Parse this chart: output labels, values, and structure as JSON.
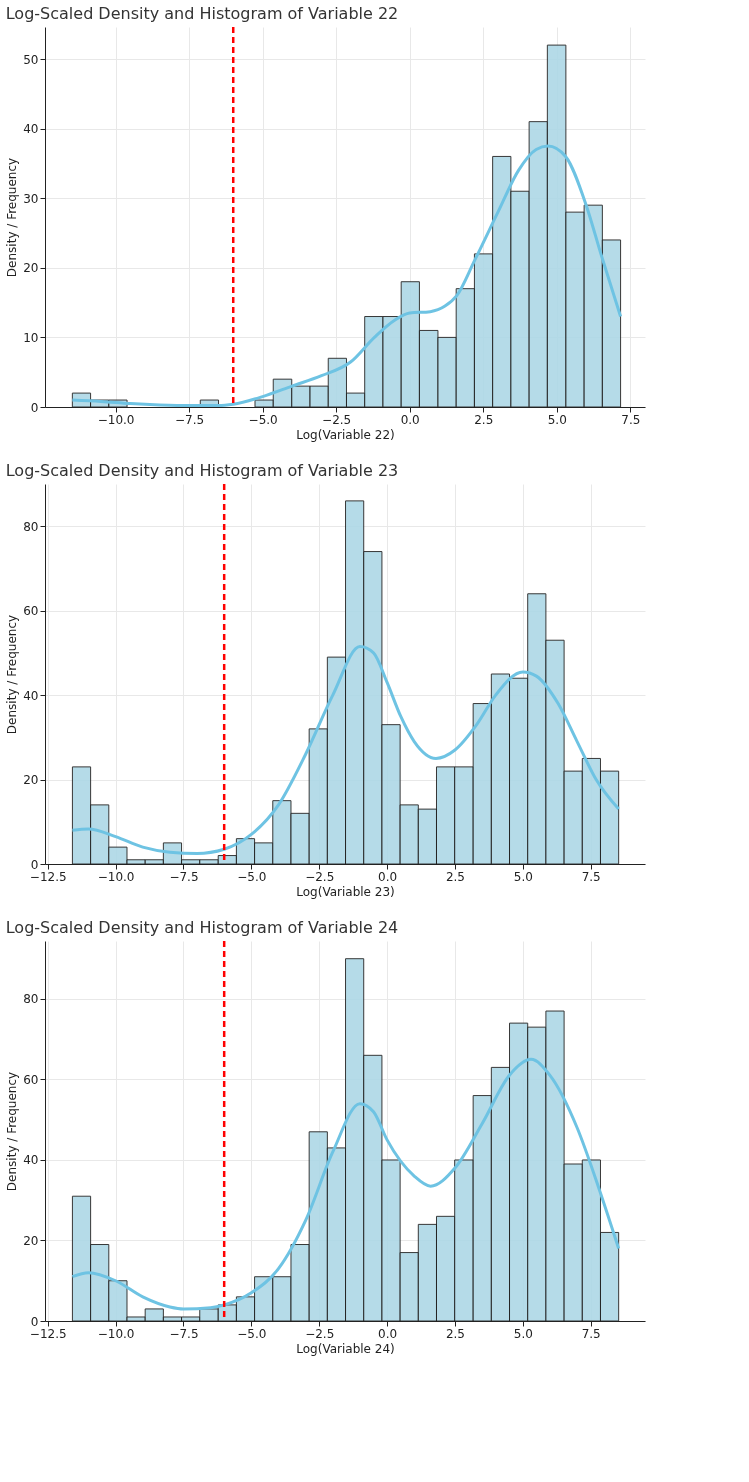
{
  "chart_data": [
    {
      "type": "histogram",
      "title": "Log-Scaled Density and Histogram of Variable 22",
      "xlabel": "Log(Variable 22)",
      "ylabel": "Density / Frequency",
      "bins": [
        -11.47,
        -10.85,
        -10.23,
        -9.61,
        -8.98,
        -8.36,
        -7.74,
        -7.12,
        -6.5,
        -5.88,
        -5.26,
        -4.64,
        -4.01,
        -3.39,
        -2.77,
        -2.15,
        -1.53,
        -0.91,
        -0.29,
        0.33,
        0.96,
        1.58,
        2.2,
        2.82,
        3.44,
        4.06,
        4.68,
        5.31,
        5.93,
        6.55,
        7.17
      ],
      "values": [
        2,
        1,
        1,
        0,
        0,
        0,
        0,
        1,
        0,
        0,
        1,
        4,
        3,
        3,
        7,
        2,
        13,
        13,
        18,
        11,
        10,
        17,
        22,
        36,
        31,
        41,
        52,
        28,
        29,
        24
      ],
      "color": "#add8e6",
      "series": [
        {
          "type": "line",
          "color": "#6ec3e3",
          "x": [
            -11.47,
            -10.5,
            -9.5,
            -8.5,
            -7.5,
            -6.5,
            -6,
            -5,
            -4,
            -3,
            -2,
            -1.2,
            -0.5,
            0,
            0.7,
            1.2,
            1.6,
            2.2,
            3,
            3.7,
            4.3,
            4.7,
            5.3,
            6,
            6.5,
            7.17
          ],
          "values": [
            1,
            0.8,
            0.5,
            0.3,
            0.2,
            0.2,
            0.4,
            1.5,
            3,
            4.5,
            6.5,
            10,
            12.5,
            13.5,
            13.7,
            14.5,
            16,
            21,
            28,
            34,
            37,
            37.5,
            36,
            29,
            22,
            13
          ]
        }
      ],
      "xlim": [
        -12.4,
        8.0
      ],
      "xticks": [
        {
          "value": -10,
          "label": "−10.0"
        },
        {
          "value": -7.5,
          "label": "−7.5"
        },
        {
          "value": -5,
          "label": "−5.0"
        },
        {
          "value": -2.5,
          "label": "−2.5"
        },
        {
          "value": 0,
          "label": "0.0"
        },
        {
          "value": 2.5,
          "label": "2.5"
        },
        {
          "value": 5,
          "label": "5.0"
        },
        {
          "value": 7.5,
          "label": "7.5"
        }
      ],
      "ylim": [
        0,
        54.6
      ],
      "yticks": [
        0,
        10,
        20,
        30,
        40,
        50
      ],
      "ref_lines": [
        {
          "axis": "x",
          "value": -6,
          "color": "#ff0000",
          "line_style": "dashed"
        }
      ],
      "grid": true
    },
    {
      "type": "histogram",
      "title": "Log-Scaled Density and Histogram of Variable 23",
      "xlabel": "Log(Variable 23)",
      "ylabel": "Density / Frequency",
      "bins": [
        -11.59,
        -10.92,
        -10.25,
        -9.58,
        -8.91,
        -8.24,
        -7.57,
        -6.9,
        -6.22,
        -5.55,
        -4.88,
        -4.21,
        -3.54,
        -2.87,
        -2.2,
        -1.53,
        -0.86,
        -0.19,
        0.48,
        1.15,
        1.82,
        2.49,
        3.17,
        3.84,
        4.51,
        5.18,
        5.85,
        6.52,
        7.19,
        7.86,
        8.53
      ],
      "values": [
        23,
        14,
        4,
        1,
        1,
        5,
        1,
        1,
        2,
        6,
        5,
        15,
        12,
        32,
        49,
        86,
        74,
        33,
        14,
        13,
        23,
        23,
        38,
        45,
        44,
        64,
        53,
        22,
        25,
        22
      ],
      "color": "#add8e6",
      "series": [
        {
          "type": "line",
          "color": "#6ec3e3",
          "x": [
            -11.59,
            -11,
            -10,
            -9,
            -8,
            -7,
            -6,
            -5,
            -4,
            -3,
            -2,
            -1,
            -0.5,
            0,
            0.5,
            1,
            1.8,
            2.5,
            3.3,
            4,
            5,
            5.5,
            6.3,
            7,
            7.7,
            8.53
          ],
          "values": [
            8,
            8.3,
            6.5,
            4,
            2.8,
            2.5,
            3.5,
            7,
            14,
            26,
            40,
            51.5,
            50,
            43,
            35,
            29,
            25,
            27,
            33,
            40,
            45.5,
            44.5,
            38,
            29,
            20,
            13
          ]
        }
      ],
      "xlim": [
        -12.6,
        9.5
      ],
      "xticks": [
        {
          "value": -12.5,
          "label": "−12.5"
        },
        {
          "value": -10,
          "label": "−10.0"
        },
        {
          "value": -7.5,
          "label": "−7.5"
        },
        {
          "value": -5,
          "label": "−5.0"
        },
        {
          "value": -2.5,
          "label": "−2.5"
        },
        {
          "value": 0,
          "label": "0.0"
        },
        {
          "value": 2.5,
          "label": "2.5"
        },
        {
          "value": 5,
          "label": "5.0"
        },
        {
          "value": 7.5,
          "label": "7.5"
        }
      ],
      "ylim": [
        0,
        90
      ],
      "yticks": [
        0,
        20,
        40,
        60,
        80
      ],
      "ref_lines": [
        {
          "axis": "x",
          "value": -6,
          "color": "#ff0000",
          "line_style": "dashed"
        }
      ],
      "grid": true
    },
    {
      "type": "histogram",
      "title": "Log-Scaled Density and Histogram of Variable 24",
      "xlabel": "Log(Variable 24)",
      "ylabel": "Density / Frequency",
      "bins": [
        -11.59,
        -10.92,
        -10.25,
        -9.58,
        -8.91,
        -8.24,
        -7.57,
        -6.9,
        -6.22,
        -5.55,
        -4.88,
        -4.21,
        -3.54,
        -2.87,
        -2.2,
        -1.53,
        -0.86,
        -0.19,
        0.48,
        1.15,
        1.82,
        2.49,
        3.17,
        3.84,
        4.51,
        5.18,
        5.85,
        6.52,
        7.19,
        7.86,
        8.53
      ],
      "values": [
        31,
        19,
        10,
        1,
        3,
        1,
        1,
        3,
        4,
        6,
        11,
        11,
        19,
        47,
        43,
        90,
        66,
        40,
        17,
        24,
        26,
        40,
        56,
        63,
        74,
        73,
        77,
        39,
        40,
        22
      ],
      "color": "#add8e6",
      "series": [
        {
          "type": "line",
          "color": "#6ec3e3",
          "x": [
            -11.59,
            -11,
            -10,
            -9,
            -8,
            -7.5,
            -6.5,
            -6,
            -5,
            -4,
            -3,
            -2,
            -1,
            -0.5,
            0,
            1,
            1.6,
            2.5,
            3.5,
            4.5,
            5.3,
            6,
            7,
            7.8,
            8.53
          ],
          "values": [
            11,
            12,
            10,
            6,
            3.5,
            3,
            3.3,
            4,
            7,
            13,
            25,
            42,
            54,
            52,
            45,
            36,
            33.5,
            38,
            49,
            61,
            65,
            61,
            48,
            33,
            18
          ]
        }
      ],
      "xlim": [
        -12.6,
        9.5
      ],
      "xticks": [
        {
          "value": -12.5,
          "label": "−12.5"
        },
        {
          "value": -10,
          "label": "−10.0"
        },
        {
          "value": -7.5,
          "label": "−7.5"
        },
        {
          "value": -5,
          "label": "−5.0"
        },
        {
          "value": -2.5,
          "label": "−2.5"
        },
        {
          "value": 0,
          "label": "0.0"
        },
        {
          "value": 2.5,
          "label": "2.5"
        },
        {
          "value": 5,
          "label": "5.0"
        },
        {
          "value": 7.5,
          "label": "7.5"
        }
      ],
      "ylim": [
        0,
        94.4
      ],
      "yticks": [
        0,
        20,
        40,
        60,
        80
      ],
      "ref_lines": [
        {
          "axis": "x",
          "value": -6,
          "color": "#ff0000",
          "line_style": "dashed"
        }
      ],
      "grid": true
    }
  ]
}
